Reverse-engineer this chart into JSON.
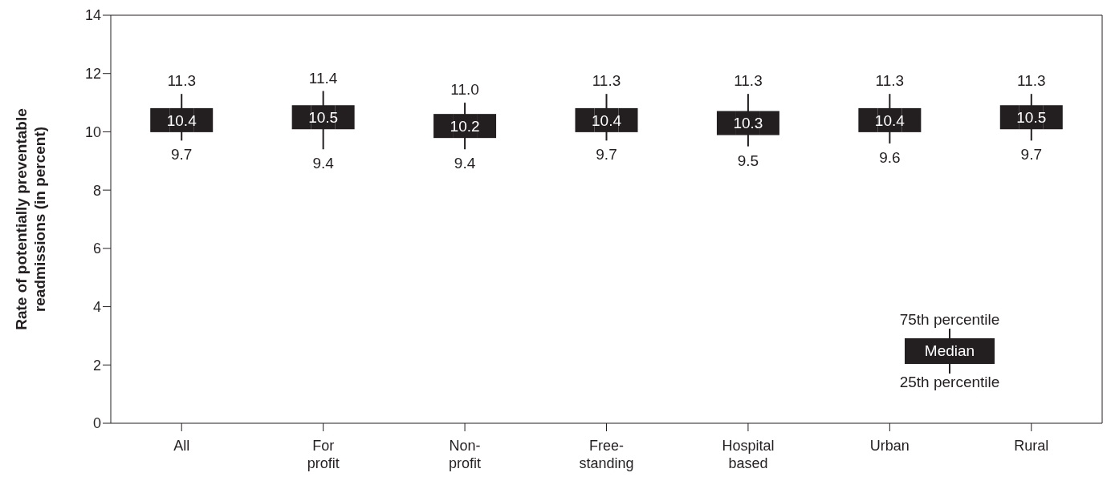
{
  "chart_data": {
    "type": "scatter",
    "ylabel": "Rate of potentially preventable readmissions (in percent)",
    "categories": [
      "All",
      "For profit",
      "Non-profit",
      "Free-standing",
      "Hospital based",
      "Urban",
      "Rural"
    ],
    "values": [
      10.4,
      10.5,
      10.2,
      10.4,
      10.3,
      10.4,
      10.5
    ],
    "errors": [
      [
        9.7,
        11.3
      ],
      [
        9.4,
        11.4
      ],
      [
        9.4,
        11.0
      ],
      [
        9.7,
        11.3
      ],
      [
        9.5,
        11.3
      ],
      [
        9.6,
        11.3
      ],
      [
        9.7,
        11.3
      ]
    ],
    "color": "#231f20",
    "marker": "square",
    "data_labels": true,
    "ylim": [
      0,
      14
    ],
    "yticks": [
      0,
      2,
      4,
      6,
      8,
      10,
      12,
      14
    ],
    "annotations": [
      {
        "text": "11.3",
        "x": "All",
        "y": 11.3
      },
      {
        "text": "9.7",
        "x": "All",
        "y": 9.7
      },
      {
        "text": "11.4",
        "x": "For profit",
        "y": 11.4
      },
      {
        "text": "9.4",
        "x": "For profit",
        "y": 9.4
      },
      {
        "text": "11.0",
        "x": "Non-profit",
        "y": 11.0
      },
      {
        "text": "9.4",
        "x": "Non-profit",
        "y": 9.4
      },
      {
        "text": "11.3",
        "x": "Free-standing",
        "y": 11.3
      },
      {
        "text": "9.7",
        "x": "Free-standing",
        "y": 9.7
      },
      {
        "text": "11.3",
        "x": "Hospital based",
        "y": 11.3
      },
      {
        "text": "9.5",
        "x": "Hospital based",
        "y": 9.5
      },
      {
        "text": "11.3",
        "x": "Urban",
        "y": 11.3
      },
      {
        "text": "9.6",
        "x": "Urban",
        "y": 9.6
      },
      {
        "text": "11.3",
        "x": "Rural",
        "y": 11.3
      },
      {
        "text": "9.7",
        "x": "Rural",
        "y": 9.7
      },
      "75th percentile",
      "Median",
      "25th percentile"
    ]
  }
}
